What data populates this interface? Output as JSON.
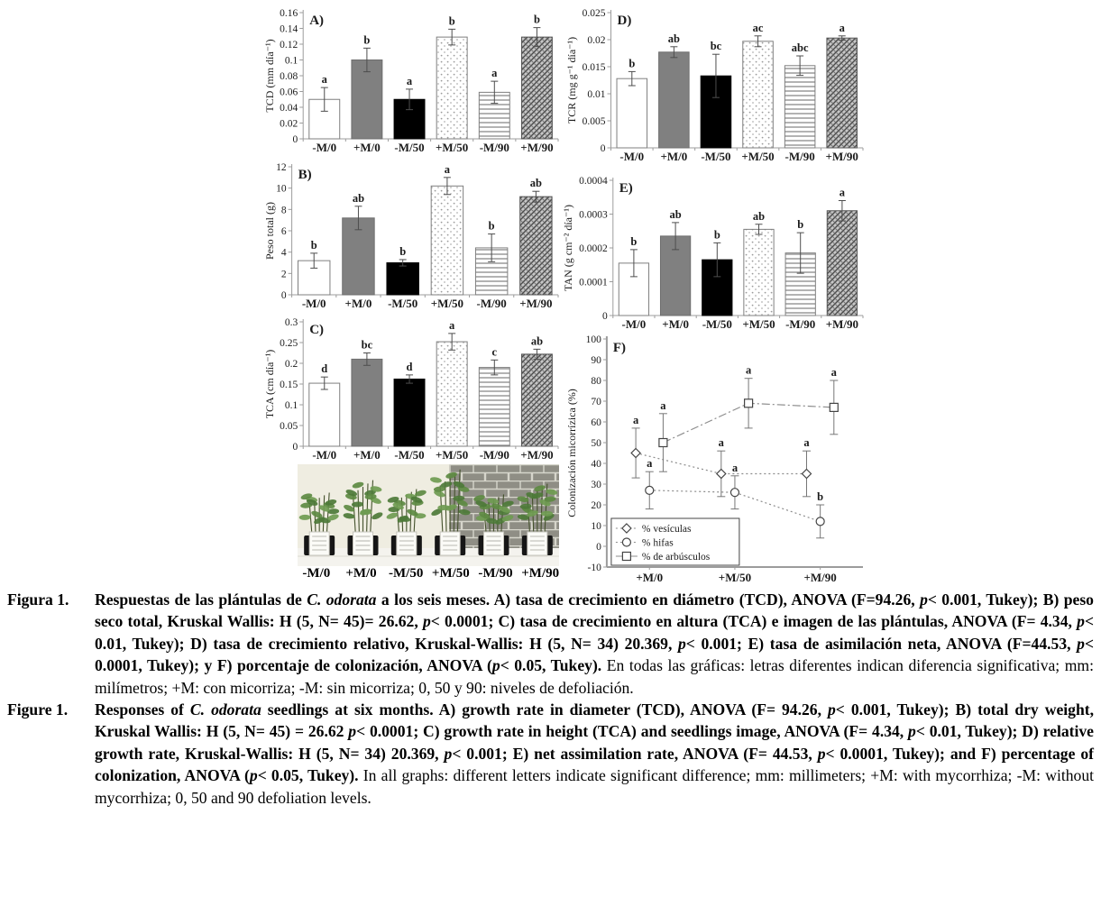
{
  "colors": {
    "axis": "#9c9c9c",
    "error_bar": "#4d4d4d",
    "line_series": "#8c8c8c",
    "bar_white": "#ffffff",
    "bar_gray": "#808080",
    "bar_black": "#000000",
    "wall": "#eceade",
    "brick": "#8f8e85",
    "table": "#f4f3ee"
  },
  "chart_data": [
    {
      "id": "A",
      "type": "bar",
      "panel_label": "A)",
      "ylabel": "TCD (mm día⁻¹)",
      "ylim": [
        0,
        0.16
      ],
      "ytick": 0.02,
      "categories": [
        "-M/0",
        "+M/0",
        "-M/50",
        "+M/50",
        "-M/90",
        "+M/90"
      ],
      "values": [
        0.05,
        0.1,
        0.05,
        0.129,
        0.059,
        0.129
      ],
      "errors": [
        0.015,
        0.015,
        0.013,
        0.01,
        0.014,
        0.012
      ],
      "letters": [
        "a",
        "b",
        "a",
        "b",
        "a",
        "b"
      ],
      "fills": [
        "white",
        "gray",
        "black",
        "dots",
        "hlines",
        "weave"
      ]
    },
    {
      "id": "B",
      "type": "bar",
      "panel_label": "B)",
      "ylabel": "Peso total (g)",
      "ylim": [
        0,
        12
      ],
      "ytick": 2,
      "categories": [
        "-M/0",
        "+M/0",
        "-M/50",
        "+M/50",
        "-M/90",
        "+M/90"
      ],
      "values": [
        3.2,
        7.2,
        3.0,
        10.2,
        4.4,
        9.2
      ],
      "errors": [
        0.7,
        1.1,
        0.3,
        0.8,
        1.3,
        0.5
      ],
      "letters": [
        "b",
        "ab",
        "b",
        "a",
        "b",
        "ab"
      ],
      "fills": [
        "white",
        "gray",
        "black",
        "dots",
        "hlines",
        "weave"
      ]
    },
    {
      "id": "C",
      "type": "bar",
      "panel_label": "C)",
      "ylabel": "TCA (cm día⁻¹)",
      "ylim": [
        0,
        0.3
      ],
      "ytick": 0.05,
      "categories": [
        "-M/0",
        "+M/0",
        "-M/50",
        "+M/50",
        "-M/90",
        "+M/90"
      ],
      "values": [
        0.152,
        0.21,
        0.162,
        0.252,
        0.19,
        0.222
      ],
      "errors": [
        0.015,
        0.015,
        0.01,
        0.02,
        0.018,
        0.012
      ],
      "letters": [
        "d",
        "bc",
        "d",
        "a",
        "c",
        "ab"
      ],
      "fills": [
        "white",
        "gray",
        "black",
        "dots",
        "hlines",
        "weave"
      ]
    },
    {
      "id": "D",
      "type": "bar",
      "panel_label": "D)",
      "ylabel": "TCR (mg g⁻¹ día⁻¹)",
      "ylim": [
        0,
        0.025
      ],
      "ytick": 0.005,
      "categories": [
        "-M/0",
        "+M/0",
        "-M/50",
        "+M/50",
        "-M/90",
        "+M/90"
      ],
      "values": [
        0.0128,
        0.0177,
        0.0133,
        0.0197,
        0.0152,
        0.0203
      ],
      "errors": [
        0.0013,
        0.001,
        0.004,
        0.001,
        0.0018,
        0.0004
      ],
      "letters": [
        "b",
        "ab",
        "bc",
        "ac",
        "abc",
        "a"
      ],
      "fills": [
        "white",
        "gray",
        "black",
        "dots",
        "hlines",
        "weave"
      ]
    },
    {
      "id": "E",
      "type": "bar",
      "panel_label": "E)",
      "ylabel": "TAN (g cm⁻² día⁻¹)",
      "ylim": [
        0,
        0.0004
      ],
      "ytick": 0.0001,
      "categories": [
        "-M/0",
        "+M/0",
        "-M/50",
        "+M/50",
        "-M/90",
        "+M/90"
      ],
      "values": [
        0.000155,
        0.000235,
        0.000165,
        0.000255,
        0.000185,
        0.00031
      ],
      "errors": [
        4e-05,
        4e-05,
        5e-05,
        1.5e-05,
        6e-05,
        3e-05
      ],
      "letters": [
        "b",
        "ab",
        "b",
        "ab",
        "b",
        "a"
      ],
      "fills": [
        "white",
        "gray",
        "black",
        "dots",
        "hlines",
        "weave"
      ]
    },
    {
      "id": "F",
      "type": "line",
      "panel_label": "F)",
      "ylabel": "Colonización micorrízica (%)",
      "ylim": [
        -10,
        100
      ],
      "ytick": 10,
      "categories": [
        "+M/0",
        "+M/50",
        "+M/90"
      ],
      "legend_position": "bottom-left",
      "series": [
        {
          "name": "% vesículas",
          "marker": "diamond",
          "dash": "dot",
          "xoffset": -0.16,
          "values": [
            45,
            35,
            35
          ],
          "errors": [
            12,
            11,
            11
          ],
          "letters": [
            "a",
            "a",
            "a"
          ]
        },
        {
          "name": "% hifas",
          "marker": "circle",
          "dash": "dot",
          "xoffset": 0,
          "values": [
            27,
            26,
            12
          ],
          "errors": [
            9,
            8,
            8
          ],
          "letters": [
            "a",
            "a",
            "b"
          ]
        },
        {
          "name": "% de arbúsculos",
          "marker": "square",
          "dash": "dashdot",
          "xoffset": 0.16,
          "values": [
            50,
            69,
            67
          ],
          "errors": [
            14,
            12,
            13
          ],
          "letters": [
            "a",
            "a",
            "a"
          ]
        }
      ]
    }
  ],
  "photo": {
    "labels": [
      "-M/0",
      "+M/0",
      "-M/50",
      "+M/50",
      "-M/90",
      "+M/90"
    ],
    "plant_heights": [
      48,
      62,
      52,
      74,
      46,
      58
    ]
  },
  "captions": [
    {
      "label": "Figura 1.",
      "lang": "es",
      "segments": [
        {
          "t": "Respuestas de las plántulas de ",
          "b": true
        },
        {
          "t": "C. odorata",
          "b": true,
          "i": true
        },
        {
          "t": " a los seis meses. A) tasa de crecimiento en diámetro (TCD), ANOVA (F=94.26, ",
          "b": true
        },
        {
          "t": "p",
          "b": true,
          "i": true
        },
        {
          "t": "< 0.001, Tukey); B) peso seco total, Kruskal Wallis: H (5, N= 45)= 26.62, ",
          "b": true
        },
        {
          "t": "p",
          "b": true,
          "i": true
        },
        {
          "t": "< 0.0001; C) tasa de crecimiento en altura (TCA) e imagen de las plántulas, ANOVA (F= 4.34, ",
          "b": true
        },
        {
          "t": "p",
          "b": true,
          "i": true
        },
        {
          "t": "< 0.01, Tukey); D) tasa de crecimiento relativo, Kruskal-Wallis: H (5, N= 34) 20.369, ",
          "b": true
        },
        {
          "t": "p",
          "b": true,
          "i": true
        },
        {
          "t": "< 0.001; E) tasa de asimilación neta, ANOVA (F=44.53, ",
          "b": true
        },
        {
          "t": "p",
          "b": true,
          "i": true
        },
        {
          "t": "< 0.0001, Tukey); y F) porcentaje de colonización, ANOVA (",
          "b": true
        },
        {
          "t": "p",
          "b": true,
          "i": true
        },
        {
          "t": "< 0.05, Tukey). ",
          "b": true
        },
        {
          "t": "En todas las gráficas: letras diferentes indican diferencia significativa; mm: milímetros; +M: con micorriza; -M: sin micorriza; 0, 50 y 90: niveles de defoliación.",
          "b": false
        }
      ]
    },
    {
      "label": "Figure 1.",
      "lang": "en",
      "segments": [
        {
          "t": "Responses of ",
          "b": true
        },
        {
          "t": "C. odorata",
          "b": true,
          "i": true
        },
        {
          "t": " seedlings at six months. A) growth rate in diameter (TCD), ANOVA (F= 94.26, ",
          "b": true
        },
        {
          "t": "p",
          "b": true,
          "i": true
        },
        {
          "t": "< 0.001, Tukey); B) total dry weight, Kruskal Wallis: H (5, N= 45) = 26.62 ",
          "b": true
        },
        {
          "t": "p",
          "b": true,
          "i": true
        },
        {
          "t": "< 0.0001; C) growth rate in height (TCA) and seedlings image, ANOVA (F= 4.34, ",
          "b": true
        },
        {
          "t": "p",
          "b": true,
          "i": true
        },
        {
          "t": "< 0.01, Tukey); D) relative growth rate, Kruskal-Wallis: H (5, N= 34) 20.369, ",
          "b": true
        },
        {
          "t": "p",
          "b": true,
          "i": true
        },
        {
          "t": "< 0.001; E) net assimilation rate, ANOVA (F= 44.53, ",
          "b": true
        },
        {
          "t": "p",
          "b": true,
          "i": true
        },
        {
          "t": "< 0.0001, Tukey); and F) percentage of colonization, ANOVA (",
          "b": true
        },
        {
          "t": "p",
          "b": true,
          "i": true
        },
        {
          "t": "< 0.05, Tukey). ",
          "b": true
        },
        {
          "t": "In all graphs: different letters indicate significant difference; mm: millimeters; +M: with mycorrhiza; -M: without mycorrhiza; 0, 50 and 90 defoliation levels.",
          "b": false
        }
      ]
    }
  ]
}
